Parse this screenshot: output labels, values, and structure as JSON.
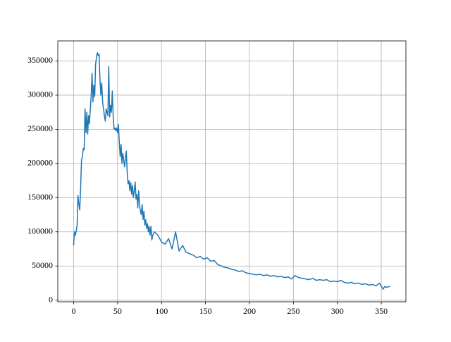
{
  "chart_data": {
    "type": "line",
    "x": [
      0,
      1,
      2,
      3,
      4,
      5,
      6,
      7,
      8,
      9,
      10,
      11,
      12,
      13,
      14,
      15,
      16,
      17,
      18,
      19,
      20,
      21,
      22,
      23,
      24,
      25,
      26,
      27,
      28,
      29,
      30,
      31,
      32,
      33,
      34,
      35,
      36,
      37,
      38,
      39,
      40,
      41,
      42,
      43,
      44,
      45,
      46,
      47,
      48,
      49,
      50,
      51,
      52,
      53,
      54,
      55,
      56,
      57,
      58,
      59,
      60,
      61,
      62,
      63,
      64,
      65,
      66,
      67,
      68,
      69,
      70,
      71,
      72,
      73,
      74,
      75,
      76,
      77,
      78,
      79,
      80,
      81,
      82,
      83,
      84,
      85,
      86,
      87,
      88,
      89,
      90,
      92,
      96,
      100,
      104,
      108,
      112,
      116,
      120,
      124,
      128,
      132,
      136,
      140,
      144,
      148,
      152,
      156,
      160,
      164,
      168,
      172,
      176,
      180,
      184,
      188,
      192,
      196,
      200,
      204,
      208,
      212,
      216,
      220,
      224,
      228,
      232,
      236,
      240,
      244,
      248,
      252,
      256,
      260,
      264,
      268,
      272,
      276,
      280,
      284,
      288,
      292,
      296,
      300,
      304,
      308,
      312,
      316,
      320,
      324,
      328,
      332,
      336,
      340,
      344,
      348,
      352,
      354,
      356,
      360
    ],
    "series": [
      {
        "color": "#1f77b4",
        "values": [
          80000,
          100000,
          95000,
          102000,
          110000,
          153000,
          140000,
          132000,
          165000,
          205000,
          210000,
          222000,
          220000,
          280000,
          245000,
          275000,
          243000,
          270000,
          258000,
          280000,
          300000,
          332000,
          290000,
          315000,
          298000,
          345000,
          355000,
          362000,
          358000,
          360000,
          322000,
          300000,
          318000,
          290000,
          280000,
          270000,
          262000,
          280000,
          275000,
          270000,
          342000,
          268000,
          285000,
          275000,
          306000,
          270000,
          250000,
          252000,
          248000,
          252000,
          245000,
          257000,
          230000,
          210000,
          228000,
          200000,
          215000,
          205000,
          195000,
          210000,
          218000,
          185000,
          170000,
          175000,
          160000,
          172000,
          155000,
          168000,
          150000,
          160000,
          173000,
          148000,
          155000,
          135000,
          160000,
          140000,
          130000,
          125000,
          140000,
          118000,
          130000,
          110000,
          118000,
          105000,
          112000,
          100000,
          108000,
          95000,
          108000,
          88000,
          95000,
          100000,
          95000,
          85000,
          82000,
          90000,
          75000,
          100000,
          72000,
          80000,
          70000,
          68000,
          66000,
          62000,
          64000,
          60000,
          62000,
          57000,
          58000,
          52000,
          50000,
          48000,
          47000,
          45000,
          44000,
          42000,
          43000,
          40000,
          39000,
          38000,
          37000,
          38000,
          36000,
          37000,
          35000,
          36000,
          34000,
          35000,
          33000,
          34000,
          31000,
          36000,
          33000,
          32000,
          31000,
          30000,
          32000,
          29000,
          30000,
          29000,
          30000,
          27000,
          28000,
          27000,
          29000,
          26000,
          25000,
          26000,
          24000,
          25000,
          23000,
          24000,
          22000,
          23000,
          21000,
          25000,
          16000,
          20000,
          19000,
          20000
        ]
      }
    ],
    "xlim": [
      -18,
      378
    ],
    "ylim": [
      -2400,
      379400
    ],
    "xticks": [
      0,
      50,
      100,
      150,
      200,
      250,
      300,
      350
    ],
    "yticks": [
      0,
      50000,
      100000,
      150000,
      200000,
      250000,
      300000,
      350000
    ],
    "grid": true
  }
}
